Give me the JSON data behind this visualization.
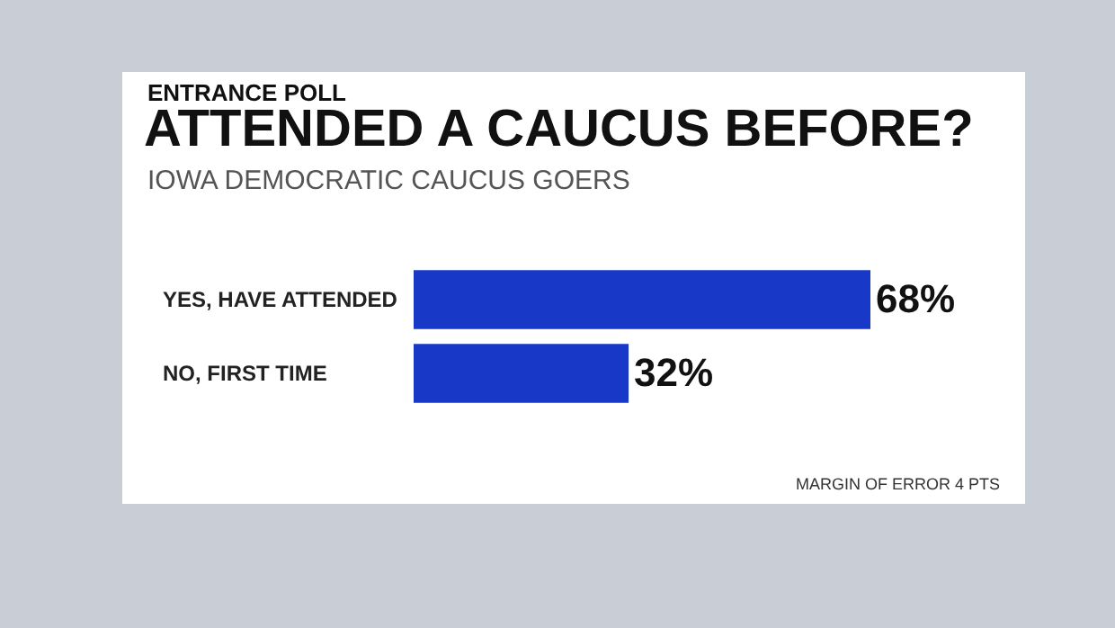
{
  "chart_data": {
    "type": "bar",
    "orientation": "horizontal",
    "title": "ATTENDED A CAUCUS BEFORE?",
    "subtitle": "IOWA DEMOCRATIC CAUCUS GOERS",
    "annotations": [
      "ENTRANCE POLL",
      "MARGIN OF ERROR 4 PTS"
    ],
    "categories": [
      "YES, HAVE ATTENDED",
      "NO, FIRST TIME"
    ],
    "values": [
      68,
      32
    ],
    "value_labels": [
      "68%",
      "32%"
    ],
    "color": "#1838c8"
  }
}
